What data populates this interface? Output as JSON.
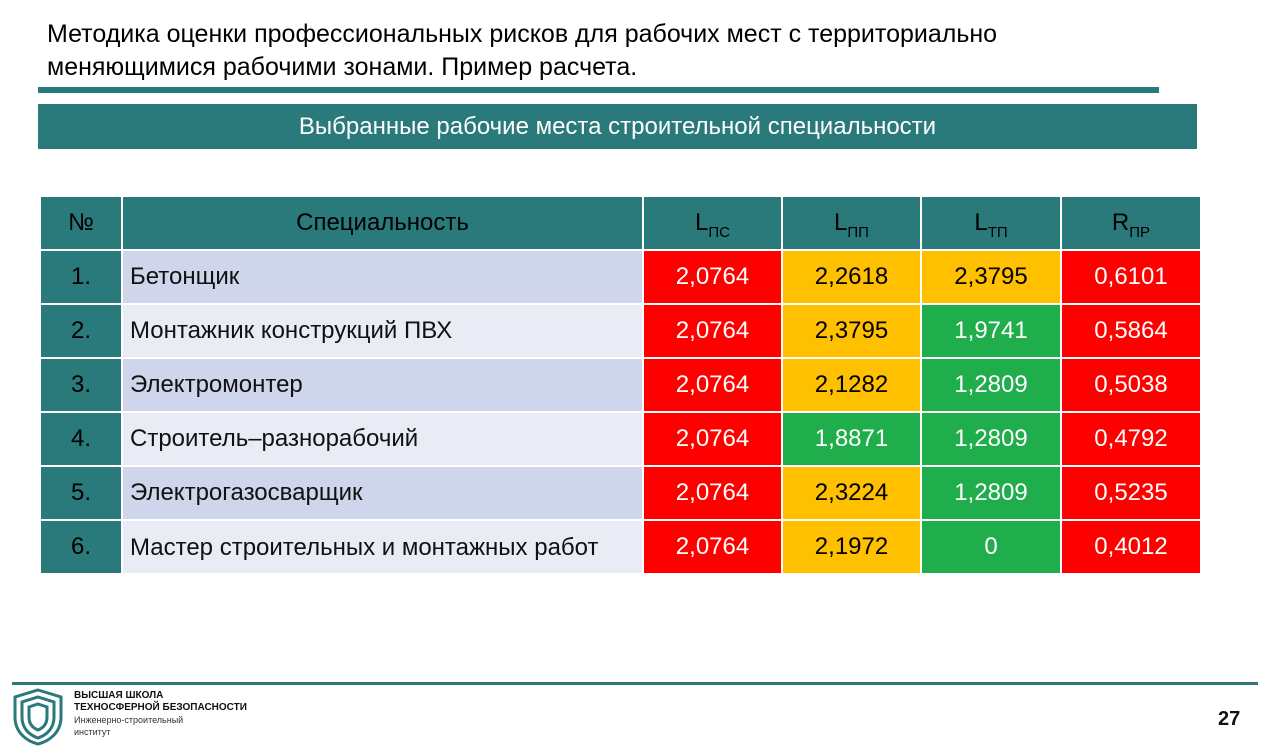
{
  "title": {
    "line1": "Методика оценки профессиональных рисков для рабочих мест с территориально",
    "line2": "меняющимися рабочими зонами. Пример расчета."
  },
  "banner": "Выбранные рабочие места строительной специальности",
  "table": {
    "headers": {
      "num": "№",
      "specialty": "Специальность",
      "lps": {
        "main": "L",
        "sub": "ПС"
      },
      "lpp": {
        "main": "L",
        "sub": "ПП"
      },
      "ltp": {
        "main": "L",
        "sub": "ТП"
      },
      "rpr": {
        "main": "R",
        "sub": "ПР"
      }
    },
    "rows": [
      {
        "num": "1.",
        "name": "Бетонщик",
        "lps": "2,0764",
        "lpp": "2,2618",
        "ltp": "2,3795",
        "rpr": "0,6101"
      },
      {
        "num": "2.",
        "name": "Монтажник конструкций ПВХ",
        "lps": "2,0764",
        "lpp": "2,3795",
        "ltp": "1,9741",
        "rpr": "0,5864"
      },
      {
        "num": "3.",
        "name": "Электромонтер",
        "lps": "2,0764",
        "lpp": "2,1282",
        "ltp": "1,2809",
        "rpr": "0,5038"
      },
      {
        "num": "4.",
        "name": "Строитель–разнорабочий",
        "lps": "2,0764",
        "lpp": "1,8871",
        "ltp": "1,2809",
        "rpr": "0,4792"
      },
      {
        "num": "5.",
        "name": "Электрогазосварщик",
        "lps": "2,0764",
        "lpp": "2,3224",
        "ltp": "1,2809",
        "rpr": "0,5235"
      },
      {
        "num": "6.",
        "name": "Мастер строительных и монтажных работ",
        "lps": "2,0764",
        "lpp": "2,1972",
        "ltp": "0",
        "rpr": "0,4012"
      }
    ],
    "colors": {
      "red": "#ff0000",
      "amber": "#ffc000",
      "green": "#1fae4b",
      "teal": "#2a7a7b"
    }
  },
  "footer": {
    "org_line1": "ВЫСШАЯ ШКОЛА",
    "org_line2": "ТЕХНОСФЕРНОЙ БЕЗОПАСНОСТИ",
    "org_line3": "Инженерно-строительный",
    "org_line4": "институт",
    "logo_icon": "shield-icon",
    "page_number": "27"
  }
}
